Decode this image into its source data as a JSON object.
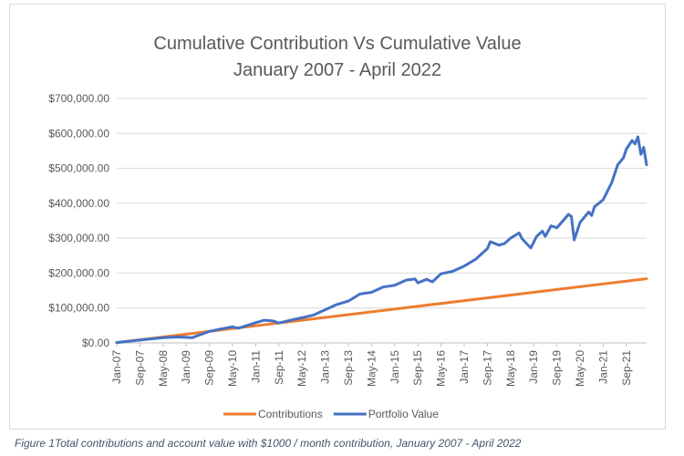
{
  "caption": "Figure 1Total contributions and account value with $1000 / month contribution, January 2007 - April 2022",
  "chart_data": {
    "type": "line",
    "title": [
      "Cumulative Contribution Vs Cumulative Value",
      "January 2007 - April 2022"
    ],
    "xlabel": "",
    "ylabel": "",
    "ylim": [
      0,
      700000
    ],
    "y_ticks": [
      0,
      100000,
      200000,
      300000,
      400000,
      500000,
      600000,
      700000
    ],
    "y_tick_labels": [
      "$0.00",
      "$100,000.00",
      "$200,000.00",
      "$300,000.00",
      "$400,000.00",
      "$500,000.00",
      "$600,000.00",
      "$700,000.00"
    ],
    "x_tick_labels": [
      "Jan-07",
      "Sep-07",
      "May-08",
      "Jan-09",
      "Sep-09",
      "May-10",
      "Jan-11",
      "Sep-11",
      "May-12",
      "Jan-13",
      "Sep-13",
      "May-14",
      "Jan-15",
      "Sep-15",
      "May-16",
      "Jan-17",
      "Sep-17",
      "May-18",
      "Jan-19",
      "Sep-19",
      "May-20",
      "Jan-21",
      "Sep-21"
    ],
    "x_tick_every_months": 8,
    "x_start": "Jan-07",
    "x_end": "Apr-22",
    "grid": true,
    "legend_position": "bottom",
    "series": [
      {
        "name": "Contributions",
        "color": "#ed7d31",
        "x": [
          "Jan-07",
          "Apr-22"
        ],
        "values": [
          1000,
          184000
        ]
      },
      {
        "name": "Portfolio Value",
        "color": "#4472c4",
        "x": [
          "Jan-07",
          "Sep-07",
          "May-08",
          "Oct-08",
          "Jan-09",
          "Mar-09",
          "Sep-09",
          "Jan-10",
          "May-10",
          "Jul-10",
          "Jan-11",
          "Apr-11",
          "Jul-11",
          "Sep-11",
          "Jan-12",
          "May-12",
          "Sep-12",
          "Jan-13",
          "May-13",
          "Sep-13",
          "Jan-14",
          "May-14",
          "Sep-14",
          "Jan-15",
          "May-15",
          "Aug-15",
          "Sep-15",
          "Dec-15",
          "Feb-16",
          "May-16",
          "Sep-16",
          "Jan-17",
          "May-17",
          "Sep-17",
          "Oct-17",
          "Jan-18",
          "Mar-18",
          "May-18",
          "Aug-18",
          "Sep-18",
          "Dec-18",
          "Feb-19",
          "Apr-19",
          "May-19",
          "Jul-19",
          "Sep-19",
          "Dec-19",
          "Jan-20",
          "Feb-20",
          "Mar-20",
          "May-20",
          "Aug-20",
          "Sep-20",
          "Oct-20",
          "Jan-21",
          "Apr-21",
          "Jun-21",
          "Aug-21",
          "Sep-21",
          "Nov-21",
          "Dec-21",
          "Jan-22",
          "Feb-22",
          "Mar-22",
          "Apr-22"
        ],
        "values": [
          1000,
          8000,
          15000,
          17000,
          16000,
          15000,
          33000,
          40000,
          46000,
          42000,
          58000,
          65000,
          63000,
          57000,
          65000,
          72000,
          80000,
          95000,
          110000,
          120000,
          140000,
          145000,
          160000,
          165000,
          180000,
          183000,
          172000,
          182000,
          175000,
          198000,
          205000,
          220000,
          240000,
          270000,
          290000,
          280000,
          285000,
          300000,
          315000,
          298000,
          272000,
          305000,
          320000,
          305000,
          335000,
          330000,
          358000,
          368000,
          362000,
          295000,
          345000,
          375000,
          365000,
          390000,
          410000,
          460000,
          510000,
          530000,
          555000,
          580000,
          570000,
          590000,
          540000,
          560000,
          510000
        ]
      }
    ]
  }
}
